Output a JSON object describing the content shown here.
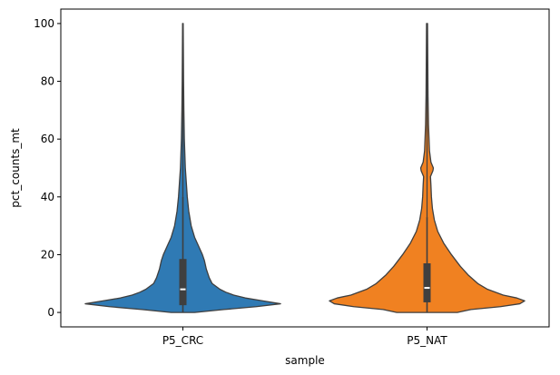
{
  "chart_data": {
    "type": "violin",
    "title": "",
    "xlabel": "sample",
    "ylabel": "pct_counts_mt",
    "ylim": [
      -5,
      105
    ],
    "yticks": [
      0,
      20,
      40,
      60,
      80,
      100
    ],
    "categories": [
      "P5_CRC",
      "P5_NAT"
    ],
    "colors": [
      "#2f7ab4",
      "#f08121"
    ],
    "grid": false,
    "series": [
      {
        "name": "P5_CRC",
        "color": "#2f7ab4",
        "min": 0,
        "q1": 2.5,
        "median": 8,
        "q3": 18.5,
        "max": 100,
        "whisker_high": 40,
        "density": [
          [
            0,
            0.12
          ],
          [
            1,
            0.42
          ],
          [
            2,
            0.75
          ],
          [
            3,
            1.0
          ],
          [
            4,
            0.82
          ],
          [
            5,
            0.64
          ],
          [
            6,
            0.52
          ],
          [
            7,
            0.44
          ],
          [
            8,
            0.38
          ],
          [
            10,
            0.3
          ],
          [
            12,
            0.27
          ],
          [
            15,
            0.24
          ],
          [
            18,
            0.22
          ],
          [
            20,
            0.2
          ],
          [
            23,
            0.16
          ],
          [
            26,
            0.12
          ],
          [
            30,
            0.085
          ],
          [
            35,
            0.06
          ],
          [
            40,
            0.045
          ],
          [
            45,
            0.035
          ],
          [
            50,
            0.025
          ],
          [
            60,
            0.015
          ],
          [
            70,
            0.01
          ],
          [
            80,
            0.007
          ],
          [
            90,
            0.005
          ],
          [
            100,
            0.003
          ]
        ]
      },
      {
        "name": "P5_NAT",
        "color": "#f08121",
        "min": 0,
        "q1": 3.5,
        "median": 8.5,
        "q3": 17,
        "max": 100,
        "whisker_high": 33,
        "density": [
          [
            0,
            0.31
          ],
          [
            1,
            0.45
          ],
          [
            2,
            0.75
          ],
          [
            3,
            0.95
          ],
          [
            4,
            1.0
          ],
          [
            5,
            0.92
          ],
          [
            6,
            0.78
          ],
          [
            8,
            0.62
          ],
          [
            10,
            0.52
          ],
          [
            13,
            0.42
          ],
          [
            16,
            0.34
          ],
          [
            20,
            0.25
          ],
          [
            24,
            0.17
          ],
          [
            28,
            0.11
          ],
          [
            32,
            0.075
          ],
          [
            36,
            0.055
          ],
          [
            40,
            0.045
          ],
          [
            44,
            0.04
          ],
          [
            47,
            0.035
          ],
          [
            49,
            0.06
          ],
          [
            50,
            0.065
          ],
          [
            52,
            0.04
          ],
          [
            56,
            0.025
          ],
          [
            65,
            0.015
          ],
          [
            75,
            0.01
          ],
          [
            85,
            0.008
          ],
          [
            95,
            0.006
          ],
          [
            100,
            0.005
          ]
        ]
      }
    ]
  }
}
